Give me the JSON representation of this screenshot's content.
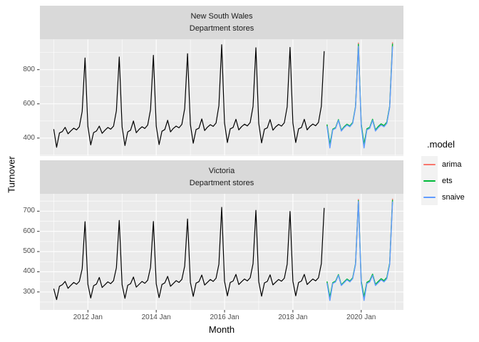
{
  "chart_data": {
    "type": "line",
    "title": "",
    "xlabel": "Month",
    "ylabel": "Turnover",
    "grid": true,
    "legend_position": "right",
    "x_ticks": [
      {
        "label": "2012 Jan",
        "month_index": 12
      },
      {
        "label": "2014 Jan",
        "month_index": 36
      },
      {
        "label": "2016 Jan",
        "month_index": 60
      },
      {
        "label": "2018 Jan",
        "month_index": 84
      },
      {
        "label": "2020 Jan",
        "month_index": 108
      }
    ],
    "x_minor_month_indices": [
      0,
      24,
      48,
      72,
      96,
      120
    ],
    "x_start": "2011 Jan",
    "forecast_start": "2019 Jan",
    "legend": {
      "title": ".model",
      "entries": [
        {
          "label": "arima",
          "color": "#F8766D"
        },
        {
          "label": "ets",
          "color": "#00BA38"
        },
        {
          "label": "snaive",
          "color": "#619CFF"
        }
      ]
    },
    "colors": {
      "history_line": "#000000",
      "panel_background": "#EBEBEB",
      "strip_background": "#D9D9D9",
      "gridline": "#FFFFFF",
      "axis_text": "#4D4D4D",
      "tick_mark": "#333333"
    },
    "facets": [
      {
        "state": "New South Wales",
        "industry": "Department stores",
        "y_ticks": [
          400,
          600,
          800
        ],
        "y_minor_ticks": [
          300,
          500,
          700,
          900
        ],
        "y_range": [
          297,
          976
        ],
        "history": [
          452,
          346,
          430,
          438,
          463,
          425,
          442,
          458,
          448,
          466,
          556,
          868,
          468,
          360,
          432,
          441,
          470,
          428,
          446,
          462,
          452,
          470,
          560,
          874,
          465,
          356,
          436,
          446,
          500,
          431,
          451,
          466,
          456,
          476,
          566,
          884,
          470,
          362,
          440,
          450,
          504,
          436,
          456,
          470,
          460,
          480,
          572,
          893,
          480,
          370,
          450,
          458,
          512,
          444,
          464,
          478,
          468,
          488,
          590,
          946,
          488,
          374,
          454,
          462,
          510,
          448,
          467,
          481,
          471,
          491,
          585,
          928,
          486,
          372,
          452,
          460,
          508,
          446,
          466,
          480,
          470,
          490,
          583,
          930,
          488,
          374,
          454,
          462,
          510,
          448,
          468,
          482,
          472,
          492,
          586,
          908
        ],
        "forecast": {
          "arima": [
            476,
            355,
            450,
            459,
            506,
            444,
            464,
            479,
            469,
            489,
            582,
            956,
            478,
            357,
            452,
            461,
            508,
            446,
            466,
            481,
            471,
            491,
            584,
            960
          ],
          "ets": [
            480,
            362,
            452,
            461,
            508,
            446,
            466,
            481,
            471,
            491,
            584,
            948,
            482,
            364,
            454,
            463,
            510,
            448,
            468,
            483,
            473,
            493,
            586,
            952
          ],
          "snaive": [
            470,
            342,
            448,
            457,
            504,
            441,
            461,
            476,
            466,
            486,
            580,
            936,
            470,
            342,
            448,
            457,
            504,
            441,
            461,
            476,
            466,
            486,
            580,
            936
          ]
        }
      },
      {
        "state": "Victoria",
        "industry": "Department stores",
        "y_ticks": [
          300,
          400,
          500,
          600,
          700
        ],
        "y_minor_ticks": [
          250,
          350,
          450,
          550,
          650,
          750
        ],
        "y_range": [
          211,
          786
        ],
        "history": [
          316,
          262,
          328,
          336,
          352,
          318,
          333,
          347,
          338,
          352,
          415,
          648,
          338,
          270,
          331,
          339,
          372,
          322,
          336,
          350,
          341,
          356,
          420,
          654,
          336,
          268,
          333,
          341,
          374,
          324,
          338,
          352,
          343,
          358,
          422,
          649,
          340,
          272,
          337,
          345,
          377,
          328,
          342,
          356,
          347,
          362,
          428,
          661,
          348,
          278,
          344,
          351,
          384,
          334,
          348,
          362,
          352,
          368,
          438,
          719,
          353,
          281,
          347,
          354,
          387,
          337,
          351,
          364,
          355,
          370,
          440,
          704,
          351,
          279,
          345,
          352,
          385,
          335,
          349,
          362,
          353,
          368,
          438,
          699,
          353,
          281,
          347,
          354,
          387,
          337,
          351,
          364,
          355,
          370,
          440,
          716
        ],
        "forecast": {
          "arima": [
            348,
            266,
            344,
            352,
            384,
            334,
            348,
            362,
            352,
            368,
            438,
            758,
            350,
            268,
            346,
            354,
            386,
            336,
            350,
            364,
            354,
            370,
            440,
            762
          ],
          "ets": [
            352,
            274,
            346,
            354,
            386,
            336,
            350,
            364,
            354,
            370,
            440,
            752,
            354,
            276,
            348,
            356,
            388,
            338,
            352,
            366,
            356,
            372,
            442,
            756
          ],
          "snaive": [
            344,
            258,
            342,
            350,
            382,
            332,
            346,
            360,
            350,
            366,
            436,
            748,
            344,
            258,
            342,
            350,
            382,
            332,
            346,
            360,
            350,
            366,
            436,
            748
          ]
        }
      }
    ]
  }
}
